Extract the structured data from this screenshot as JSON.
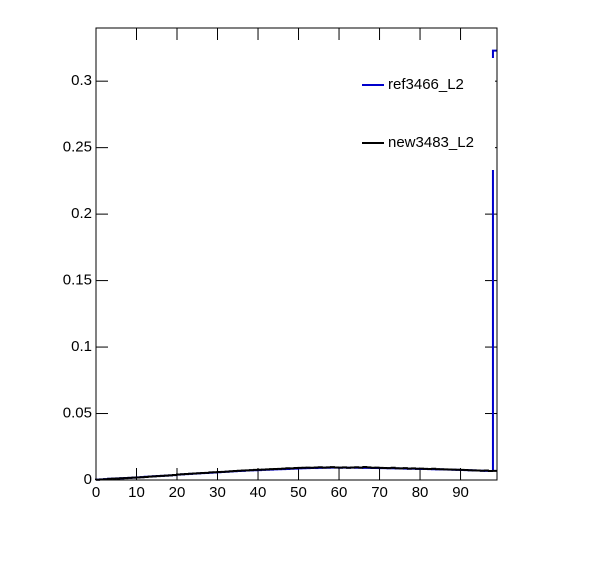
{
  "chart_data": {
    "type": "histogram",
    "bins": [
      0,
      1,
      2,
      3,
      4,
      5,
      6,
      7,
      8,
      9,
      10,
      11,
      12,
      13,
      14,
      15,
      16,
      17,
      18,
      19,
      20,
      21,
      22,
      23,
      24,
      25,
      26,
      27,
      28,
      29,
      30,
      31,
      32,
      33,
      34,
      35,
      36,
      37,
      38,
      39,
      40,
      41,
      42,
      43,
      44,
      45,
      46,
      47,
      48,
      49,
      50,
      51,
      52,
      53,
      54,
      55,
      56,
      57,
      58,
      59,
      60,
      61,
      62,
      63,
      64,
      65,
      66,
      67,
      68,
      69,
      70,
      71,
      72,
      73,
      74,
      75,
      76,
      77,
      78,
      79,
      80,
      81,
      82,
      83,
      84,
      85,
      86,
      87,
      88,
      89,
      90,
      91,
      92,
      93,
      94,
      95,
      96,
      97,
      98,
      99
    ],
    "series": [
      {
        "name": "ref3466_L2",
        "color": "#0000cc",
        "values": [
          0.0003,
          0.0005,
          0.0007,
          0.0009,
          0.001,
          0.0012,
          0.0013,
          0.0015,
          0.0016,
          0.0018,
          0.002,
          0.0022,
          0.0024,
          0.0026,
          0.0028,
          0.003,
          0.0031,
          0.0033,
          0.0035,
          0.0037,
          0.004,
          0.0042,
          0.0044,
          0.0046,
          0.0048,
          0.005,
          0.0052,
          0.0053,
          0.0055,
          0.0056,
          0.0058,
          0.006,
          0.0062,
          0.0064,
          0.0066,
          0.0068,
          0.0069,
          0.0071,
          0.0072,
          0.0073,
          0.0074,
          0.0076,
          0.0077,
          0.0078,
          0.008,
          0.0081,
          0.0082,
          0.0083,
          0.0085,
          0.0086,
          0.0087,
          0.0088,
          0.0089,
          0.009,
          0.009,
          0.0091,
          0.0092,
          0.0092,
          0.0093,
          0.0093,
          0.0092,
          0.0093,
          0.0092,
          0.0093,
          0.0092,
          0.0092,
          0.0091,
          0.0091,
          0.009,
          0.009,
          0.0089,
          0.0089,
          0.0088,
          0.0088,
          0.0087,
          0.0087,
          0.0086,
          0.0085,
          0.0085,
          0.0084,
          0.0083,
          0.0083,
          0.0082,
          0.0081,
          0.008,
          0.008,
          0.0079,
          0.0078,
          0.0077,
          0.0076,
          0.0075,
          0.0074,
          0.0073,
          0.0072,
          0.0071,
          0.007,
          0.0069,
          0.0068,
          0.323
        ]
      },
      {
        "name": "new3483_L2",
        "color": "#000000",
        "values": [
          0.0002,
          0.0004,
          0.0006,
          0.0008,
          0.001,
          0.0011,
          0.0013,
          0.0014,
          0.0016,
          0.0018,
          0.0019,
          0.0021,
          0.0023,
          0.0025,
          0.0027,
          0.0029,
          0.0031,
          0.0033,
          0.0035,
          0.0038,
          0.0041,
          0.0043,
          0.0045,
          0.0047,
          0.0049,
          0.0051,
          0.0053,
          0.0054,
          0.0057,
          0.0058,
          0.006,
          0.0061,
          0.0063,
          0.0066,
          0.0068,
          0.007,
          0.0071,
          0.0072,
          0.0074,
          0.0076,
          0.0077,
          0.0078,
          0.008,
          0.0082,
          0.0083,
          0.0084,
          0.0086,
          0.0088,
          0.0087,
          0.009,
          0.0091,
          0.0092,
          0.0093,
          0.0092,
          0.0094,
          0.0096,
          0.0093,
          0.0095,
          0.0097,
          0.0094,
          0.0093,
          0.0095,
          0.0092,
          0.0094,
          0.0096,
          0.0093,
          0.0098,
          0.0095,
          0.0092,
          0.0093,
          0.0091,
          0.009,
          0.0089,
          0.0092,
          0.0088,
          0.0087,
          0.0089,
          0.0086,
          0.0087,
          0.0085,
          0.0086,
          0.0084,
          0.0083,
          0.0085,
          0.0082,
          0.0081,
          0.008,
          0.0079,
          0.0078,
          0.0077,
          0.0076,
          0.0075,
          0.0073,
          0.0072,
          0.0071,
          0.007,
          0.0071,
          0.0068,
          0.0069
        ]
      }
    ],
    "xlim": [
      0,
      99
    ],
    "xticks": [
      0,
      10,
      20,
      30,
      40,
      50,
      60,
      70,
      80,
      90
    ],
    "ylim": [
      0,
      0.34
    ],
    "yticks": [
      0,
      0.05,
      0.1,
      0.15,
      0.2,
      0.25,
      0.3
    ],
    "legend": "upper right"
  }
}
